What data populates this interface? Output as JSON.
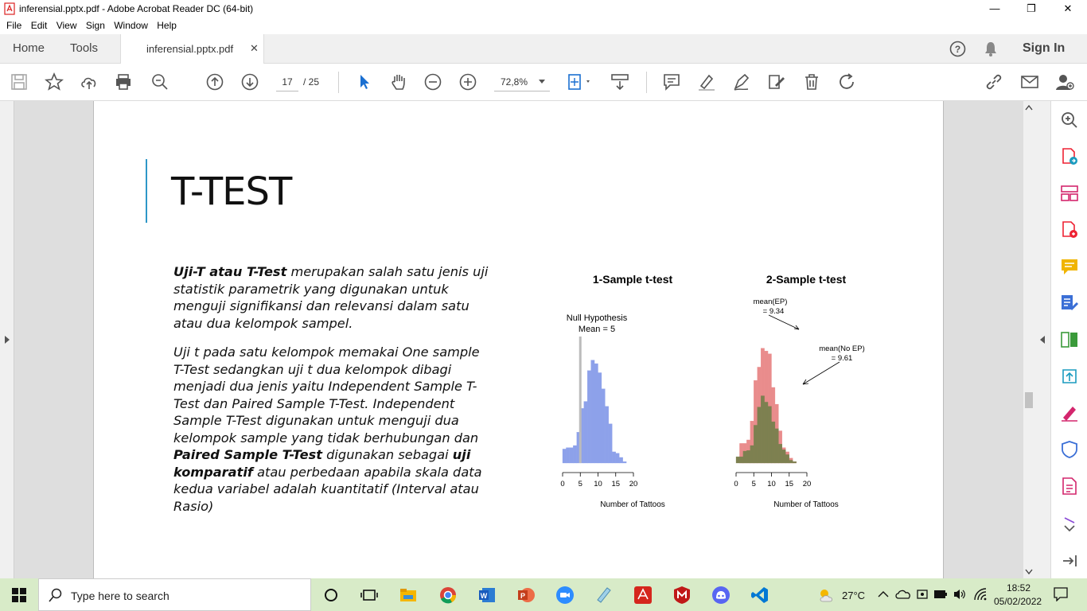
{
  "window": {
    "title": "inferensial.pptx.pdf - Adobe Acrobat Reader DC (64-bit)"
  },
  "menu": [
    "File",
    "Edit",
    "View",
    "Sign",
    "Window",
    "Help"
  ],
  "tabs": {
    "home": "Home",
    "tools": "Tools",
    "document": "inferensial.pptx.pdf",
    "signin": "Sign In"
  },
  "toolbar": {
    "current_page": "17",
    "total_pages": "/  25",
    "zoom": "72,8%"
  },
  "slide": {
    "title": "T-TEST",
    "p1_bold": "Uji-T atau T-Test",
    "p1_rest": " merupakan salah satu jenis uji statistik parametrik yang digunakan untuk menguji signifikansi dan relevansi dalam satu atau dua kelompok sampel.",
    "p2_a": "Uji t pada satu kelompok memakai One sample T-Test sedangkan uji t dua kelompok dibagi menjadi dua jenis yaitu Independent Sample T-Test dan Paired Sample T-Test. Independent Sample T-Test digunakan untuk menguji dua kelompok sample yang tidak berhubungan dan ",
    "p2_b": "Paired Sample T-Test",
    "p2_c": " digunakan sebagai ",
    "p2_d": "uji komparatif",
    "p2_e": " atau perbedaan apabila skala data kedua variabel adalah kuantitatif (Interval atau Rasio)"
  },
  "chart_data": [
    {
      "type": "bar",
      "title": "1-Sample t-test",
      "xlabel": "Number of Tattoos",
      "xlim": [
        0,
        20
      ],
      "xticks": [
        "0",
        "5",
        "10",
        "15",
        "20"
      ],
      "bin_width": 1,
      "x": [
        0,
        1,
        2,
        3,
        4,
        5,
        6,
        7,
        8,
        9,
        10,
        11,
        12,
        13,
        14,
        15,
        16,
        17
      ],
      "values": [
        2,
        2.2,
        2.2,
        2.5,
        4.4,
        7.8,
        8.8,
        13.2,
        14.7,
        14.2,
        12.9,
        10.6,
        8.1,
        5.6,
        1.6,
        1.4,
        0.8,
        0.2
      ],
      "color": "#8da1ea",
      "annotation": {
        "line1": "Null Hypothesis",
        "line2": "Mean = 5",
        "x": 5
      }
    },
    {
      "type": "bar",
      "title": "2-Sample t-test",
      "xlabel": "Number of Tattoos",
      "xlim": [
        0,
        20
      ],
      "xticks": [
        "0",
        "5",
        "10",
        "15",
        "20"
      ],
      "bin_width": 1,
      "x": [
        0,
        1,
        2,
        3,
        4,
        5,
        6,
        7,
        8,
        9,
        10,
        11,
        12,
        13,
        14,
        15,
        16,
        17,
        18
      ],
      "series": [
        {
          "name": "EP",
          "color": "#e98c8c",
          "values": [
            0,
            2.8,
            2.8,
            3.3,
            6,
            11.8,
            13.7,
            16.4,
            16,
            15.6,
            10.8,
            8.4,
            4.6,
            2.2,
            1.6,
            0.7,
            0.2,
            0,
            0
          ]
        },
        {
          "name": "No EP",
          "color": "#7d8050",
          "values": [
            0.9,
            0.9,
            1.7,
            1.8,
            2.5,
            5.4,
            8,
            9.6,
            8.7,
            8.1,
            5.9,
            4.9,
            2.7,
            1.9,
            1.2,
            0.4,
            0.2,
            0,
            0
          ]
        }
      ],
      "annotations": [
        {
          "line1": "mean(EP)",
          "line2": "= 9.34"
        },
        {
          "line1": "mean(No EP)",
          "line2": "= 9.61"
        }
      ]
    }
  ],
  "taskbar": {
    "search_placeholder": "Type here to search",
    "weather": "27°C",
    "time": "18:52",
    "date": "05/02/2022"
  }
}
